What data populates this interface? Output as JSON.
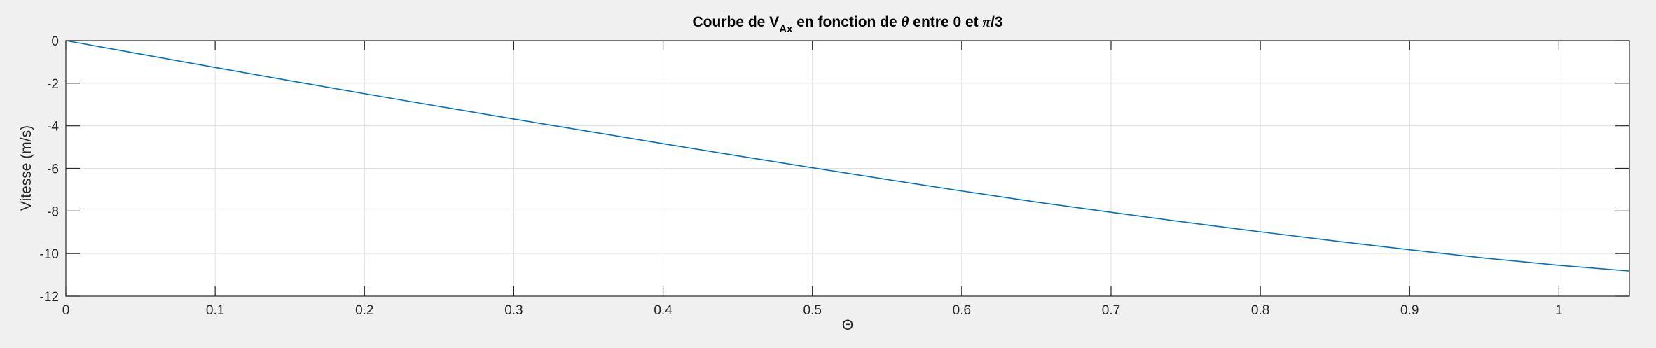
{
  "chart_data": {
    "type": "line",
    "title": {
      "prefix": "Courbe de V",
      "subscript": "Ax",
      "middle": " en fonction de ",
      "theta": "θ",
      "suffix_start": " entre 0 et ",
      "pi": "π",
      "suffix_end": "/3"
    },
    "xlabel": "Θ",
    "ylabel": "Vitesse (m/s)",
    "xlim": [
      0,
      1.0472
    ],
    "ylim": [
      -12,
      0
    ],
    "xticks": [
      0,
      0.1,
      0.2,
      0.3,
      0.4,
      0.5,
      0.6,
      0.7,
      0.8,
      0.9,
      1
    ],
    "xtick_labels": [
      "0",
      "0.1",
      "0.2",
      "0.3",
      "0.4",
      "0.5",
      "0.6",
      "0.7",
      "0.8",
      "0.9",
      "1"
    ],
    "yticks": [
      0,
      -2,
      -4,
      -6,
      -8,
      -10,
      -12
    ],
    "ytick_labels": [
      "0",
      "-2",
      "-4",
      "-6",
      "-8",
      "-10",
      "-12"
    ],
    "grid": true,
    "series": [
      {
        "color": "#0072bd",
        "x": [
          0,
          0.05,
          0.1,
          0.15,
          0.2,
          0.25,
          0.3,
          0.35,
          0.4,
          0.45,
          0.5,
          0.55,
          0.6,
          0.65,
          0.7,
          0.75,
          0.8,
          0.85,
          0.9,
          0.95,
          1.0,
          1.0472
        ],
        "y": [
          0,
          -0.63,
          -1.26,
          -1.88,
          -2.49,
          -3.09,
          -3.68,
          -4.26,
          -4.84,
          -5.41,
          -5.97,
          -6.52,
          -7.06,
          -7.58,
          -8.06,
          -8.53,
          -8.98,
          -9.41,
          -9.82,
          -10.21,
          -10.55,
          -10.82
        ]
      }
    ]
  }
}
